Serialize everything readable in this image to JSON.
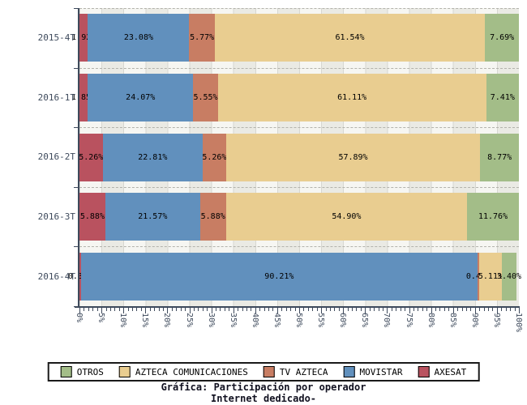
{
  "chart_data": {
    "type": "bar",
    "orientation": "horizontal",
    "stacked": true,
    "title": "Gráfica: Participación por operador",
    "subtitle": "Internet dedicado-",
    "categories": [
      "2015-4T",
      "2016-1T",
      "2016-2T",
      "2016-3T",
      "2016-4T"
    ],
    "series": [
      {
        "name": "AXESAT",
        "color": "#b9525f",
        "values": [
          1.92,
          1.85,
          5.26,
          5.88,
          0.35
        ]
      },
      {
        "name": "MOVISTAR",
        "color": "#6190bd",
        "values": [
          23.08,
          24.07,
          22.81,
          21.57,
          90.21
        ]
      },
      {
        "name": "TV AZTECA",
        "color": "#c87d63",
        "values": [
          5.77,
          5.55,
          5.26,
          5.88,
          0.42
        ]
      },
      {
        "name": "AZTECA COMUNICACIONES",
        "color": "#e9cd90",
        "values": [
          61.54,
          61.11,
          57.89,
          54.9,
          5.11
        ]
      },
      {
        "name": "OTROS",
        "color": "#a3bd88",
        "values": [
          7.69,
          7.41,
          8.77,
          11.76,
          3.4
        ]
      }
    ],
    "legend": [
      "OTROS",
      "AZTECA COMUNICACIONES",
      "TV AZTECA",
      "MOVISTAR",
      "AXESAT"
    ],
    "x_tick_labels": [
      "0%",
      "5%",
      "10%",
      "15%",
      "20%",
      "25%",
      "30%",
      "35%",
      "40%",
      "45%",
      "50%",
      "55%",
      "60%",
      "65%",
      "70%",
      "75%",
      "80%",
      "85%",
      "90%",
      "95%",
      "100%"
    ],
    "xlim": [
      0,
      100
    ],
    "value_label_suffix": "%",
    "grid": "striped-bands-with-dashed-row-separators",
    "legend_position": "bottom"
  },
  "colors": {
    "axis": "#3e4a5c",
    "tick_text": "#3e4a5c",
    "value_text": "#000000",
    "title_text": "#10101f",
    "background": "#ffffff"
  }
}
